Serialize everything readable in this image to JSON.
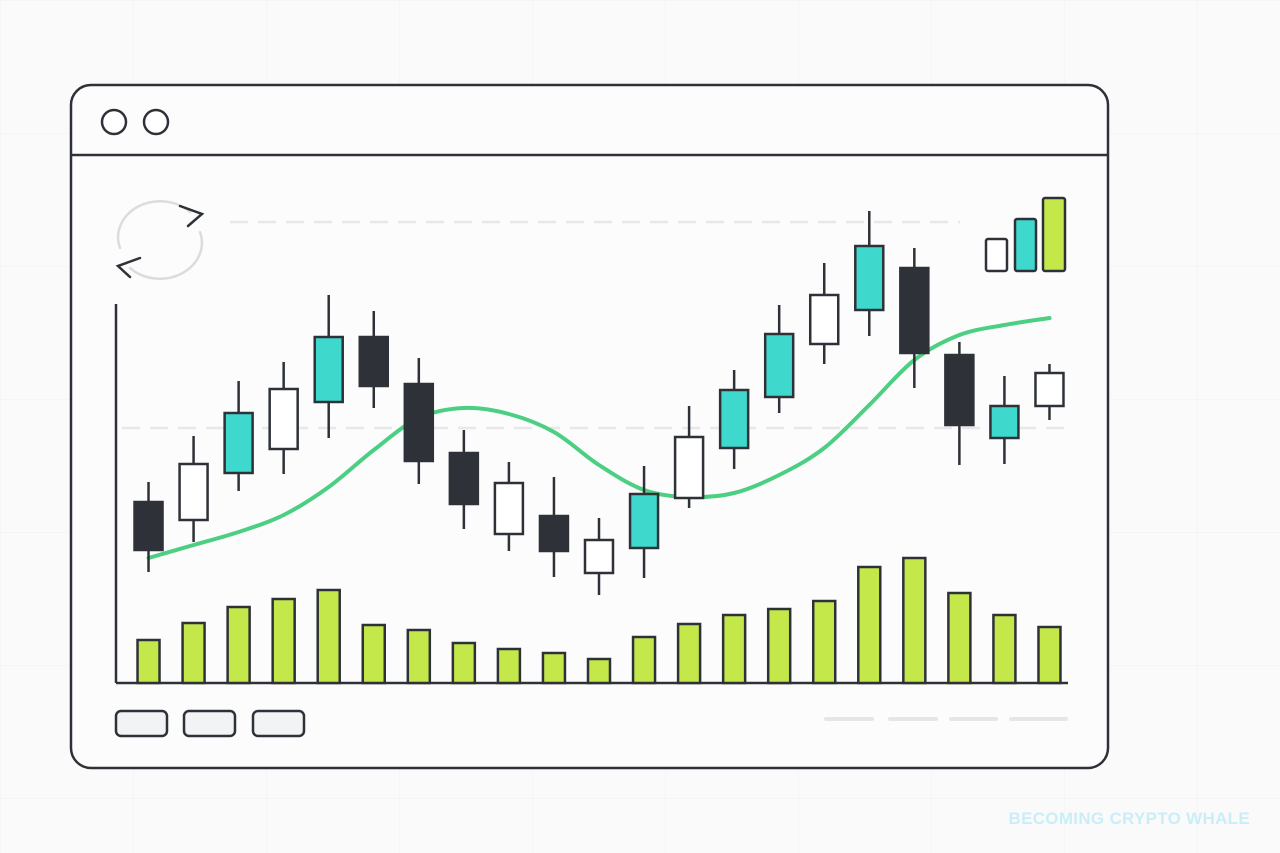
{
  "chart_data": {
    "type": "candlestick",
    "watermark": "BECOMING CRYPTO WHALE",
    "ylim": [
      0,
      120
    ],
    "y2lim": [
      0,
      120
    ],
    "open": [
      45.25,
      40.75,
      52.5,
      58.5,
      70.25,
      86.5,
      74.75,
      57.5,
      37.25,
      41.75,
      27.5,
      33.75,
      46.25,
      58.75,
      71.5,
      84.75,
      93.25,
      103.75,
      82,
      61.25,
      69.25
    ],
    "high": [
      50.25,
      61.75,
      75.5,
      80.25,
      97,
      93,
      81.25,
      63.25,
      55.25,
      51.5,
      41.25,
      54.25,
      69.25,
      78.25,
      94.5,
      105,
      118,
      108.75,
      85.25,
      76.75,
      79.75
    ],
    "low": [
      27.75,
      35.25,
      48,
      52.25,
      61.25,
      68.75,
      49.75,
      38.5,
      33,
      26.5,
      22,
      26.25,
      43.75,
      53.5,
      67.5,
      79.75,
      86.75,
      73.75,
      54.5,
      54.75,
      65.75
    ],
    "close": [
      33.25,
      54.75,
      67.5,
      73.5,
      86.5,
      74.25,
      55.5,
      44.75,
      50,
      33,
      35.75,
      47.25,
      61.5,
      73.25,
      87.25,
      97,
      109.25,
      82.5,
      64.5,
      69.25,
      77.5
    ],
    "colors": [
      "#2e3238",
      "#ffffff",
      "#3ed8cc",
      "#ffffff",
      "#3ed8cc",
      "#2e3238",
      "#2e3238",
      "#2e3238",
      "#ffffff",
      "#2e3238",
      "#ffffff",
      "#3ed8cc",
      "#ffffff",
      "#3ed8cc",
      "#3ed8cc",
      "#ffffff",
      "#3ed8cc",
      "#2e3238",
      "#2e3238",
      "#3ed8cc",
      "#ffffff"
    ],
    "moving_average": {
      "color": "#4ccf82",
      "values": [
        31.25,
        34.5,
        37.75,
        42,
        49,
        58.25,
        66.25,
        68.75,
        67.25,
        62.75,
        54.5,
        48.25,
        46.5,
        47.5,
        52,
        58.75,
        69.5,
        80.75,
        87,
        89.5,
        91.25
      ]
    },
    "volume": {
      "color": "#c4e84a",
      "axis": "y2",
      "values": [
        10.75,
        15,
        19,
        21,
        23.25,
        14.5,
        13.25,
        10,
        8.5,
        7.5,
        6,
        11.5,
        14.75,
        17,
        18.5,
        20.5,
        29,
        31.25,
        22.5,
        17,
        14
      ]
    }
  }
}
